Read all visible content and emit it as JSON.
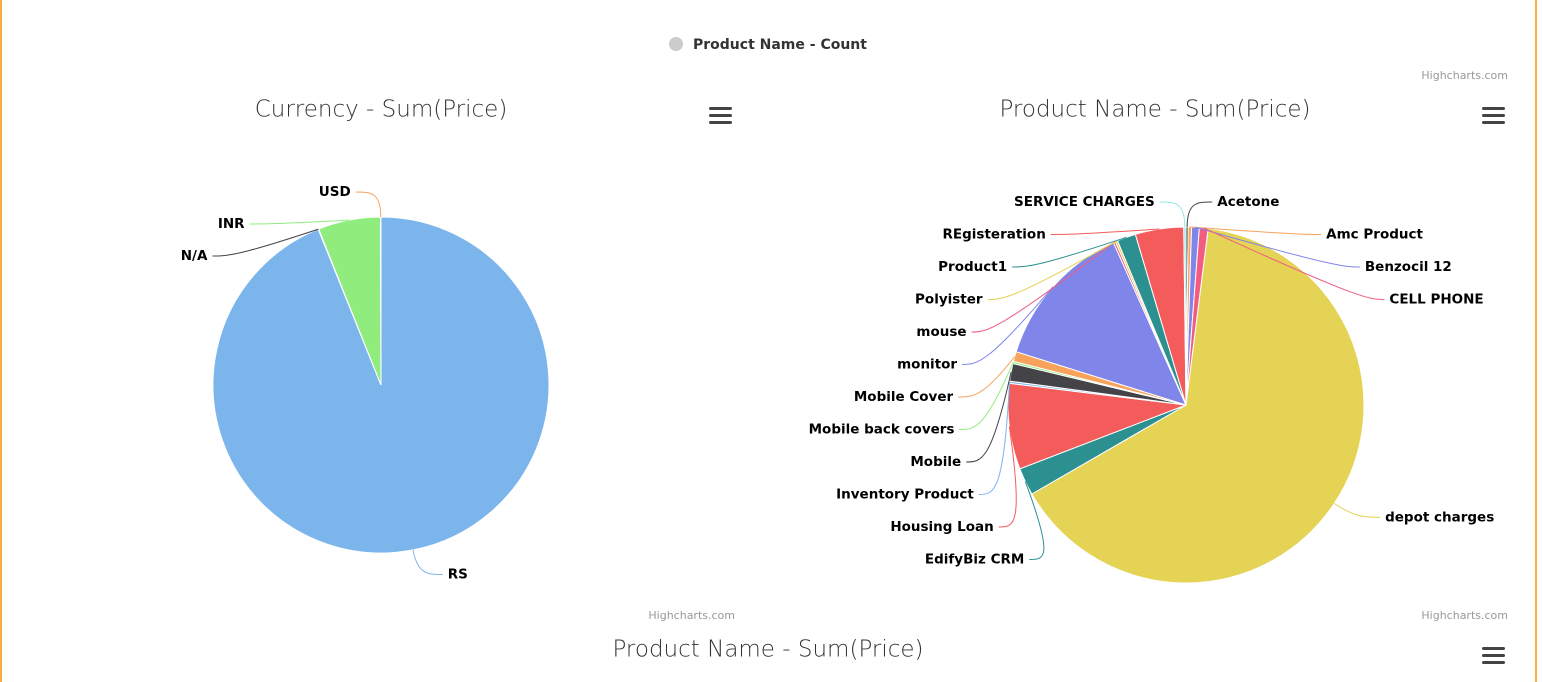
{
  "chart_data": [
    {
      "type": "legend-only",
      "series": [
        {
          "name": "Product Name - Count",
          "color": "#cccccc"
        }
      ],
      "credits": "Highcharts.com"
    },
    {
      "type": "pie",
      "title": "Currency - Sum(Price)",
      "categories": [
        "RS",
        "N/A",
        "INR",
        "USD"
      ],
      "values": [
        93.9,
        0.05,
        6,
        0.05
      ],
      "colors": [
        "#7cb5ec",
        "#434348",
        "#90ed7d",
        "#f7a35c"
      ],
      "credits": "Highcharts.com"
    },
    {
      "type": "pie",
      "title": "Product Name - Sum(Price)",
      "categories": [
        "Acetone",
        "Amc Product",
        "Benzocil 12",
        "CELL PHONE",
        "depot charges",
        "EdifyBiz CRM",
        "Housing Loan",
        "Inventory Product",
        "Mobile",
        "Mobile back covers",
        "Mobile Cover",
        "monitor",
        "mouse",
        "Polyister",
        "Product1",
        "REgisteration",
        "SERVICE CHARGES"
      ],
      "values": [
        0.2,
        0.3,
        0.7,
        0.8,
        64.8,
        2.5,
        7.8,
        0.2,
        1.6,
        0.2,
        0.9,
        13.5,
        0.2,
        0.2,
        1.7,
        4.4,
        0.2
      ],
      "colors": [
        "#434348",
        "#f7a35c",
        "#8085e9",
        "#f15c80",
        "#e4d354",
        "#2b908f",
        "#f45b5b",
        "#7cb5ec",
        "#434348",
        "#90ed7d",
        "#f7a35c",
        "#8085e9",
        "#f15c80",
        "#e4d354",
        "#2b908f",
        "#f45b5b",
        "#91e8e1"
      ],
      "credits": "Highcharts.com"
    },
    {
      "type": "pie",
      "title": "Product Name - Sum(Price)"
    }
  ]
}
